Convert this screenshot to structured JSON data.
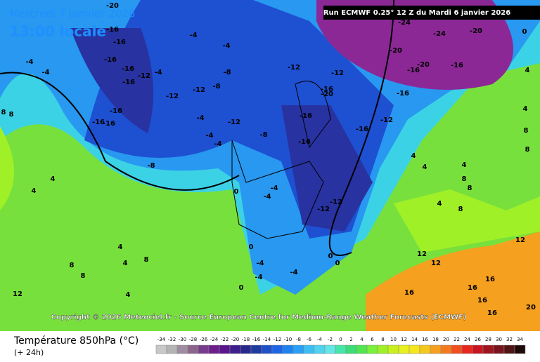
{
  "header": {
    "date": "Mercredi 7 janvier 2026",
    "time": "13:00 locale",
    "run": "Run ECMWF 0.25° 12 Z du Mardi 6 janvier 2026"
  },
  "copyright": "Copyright © 2026 Meteociel.fr - Source European Centre for Medium-Range Weather Forecasts (ECMWF)",
  "footer": {
    "title": "Température 850hPa (°C)",
    "lead": "(+ 24h)"
  },
  "legend": {
    "ticks": [
      -34,
      -32,
      -30,
      -28,
      -26,
      -24,
      -22,
      -20,
      -18,
      -16,
      -14,
      -12,
      -10,
      -8,
      -6,
      -4,
      -2,
      0,
      2,
      4,
      6,
      8,
      10,
      12,
      14,
      16,
      18,
      20,
      22,
      24,
      26,
      28,
      30,
      32,
      34
    ],
    "colors": [
      "#c8c8c8",
      "#b4b4b4",
      "#a08ca0",
      "#8c648c",
      "#783c8c",
      "#6e1e8c",
      "#5a148c",
      "#3c1e8c",
      "#28288c",
      "#1e3ca0",
      "#1e50c8",
      "#1e64e6",
      "#1e82f0",
      "#28a0f5",
      "#3cbef5",
      "#50d2f0",
      "#64e6e6",
      "#46e6aa",
      "#3cdc78",
      "#50e650",
      "#78f03c",
      "#a0f028",
      "#c8f01e",
      "#e6f01e",
      "#f5e61e",
      "#f5c81e",
      "#f5a01e",
      "#f57a1e",
      "#f0501e",
      "#e6281e",
      "#c8141e",
      "#a0141e",
      "#78141e",
      "#501414",
      "#1e0a0a"
    ]
  },
  "map": {
    "labels": [
      -20,
      -16,
      -16,
      -16,
      -16,
      -12,
      -16,
      -4,
      -4,
      -4,
      -4,
      -4,
      -8,
      -12,
      -8,
      -12,
      -16,
      -16,
      -16,
      -4,
      -4,
      -4,
      -12,
      -8,
      -8,
      -12,
      -12,
      -16,
      -20,
      -16,
      -16,
      -16,
      -12,
      -16,
      -16,
      -20,
      -16,
      -20,
      -24,
      -20,
      -24,
      0,
      8,
      8,
      4,
      4,
      0,
      -4,
      -4,
      -12,
      -12,
      0,
      -4,
      -4,
      0,
      -4,
      0,
      0,
      4,
      8,
      4,
      8,
      4,
      8,
      12,
      4,
      4,
      8,
      4,
      8,
      4,
      8,
      12,
      12,
      16,
      16,
      16,
      16,
      20,
      8,
      8,
      4,
      4,
      12,
      16
    ]
  }
}
